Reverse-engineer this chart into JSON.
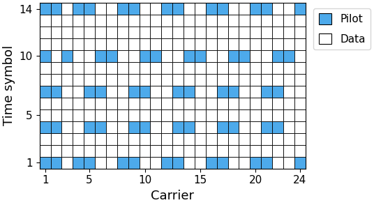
{
  "n_carriers": 24,
  "n_symbols": 14,
  "pilot_color": "#4DAAEB",
  "data_color": "#FFFFFF",
  "grid_color": "#AAAAAA",
  "edge_color": "#000000",
  "xlabel": "Carrier",
  "ylabel": "Time symbol",
  "legend_pilot": "Pilot",
  "legend_data": "Data",
  "xticks": [
    1,
    5,
    10,
    15,
    20,
    24
  ],
  "yticks": [
    1,
    5,
    10,
    14
  ],
  "pilot_positions": {
    "1": [
      1,
      2,
      4,
      5,
      8,
      9,
      12,
      13,
      16,
      17,
      20,
      21,
      24
    ],
    "4": [
      1,
      2,
      5,
      6,
      9,
      10,
      13,
      14,
      17,
      18,
      21,
      22
    ],
    "7": [
      1,
      2,
      5,
      6,
      9,
      10,
      13,
      14,
      17,
      18,
      21,
      22
    ],
    "10": [
      1,
      3,
      6,
      7,
      10,
      11,
      14,
      15,
      18,
      19,
      22,
      23
    ],
    "14": [
      1,
      2,
      4,
      5,
      8,
      9,
      12,
      13,
      16,
      17,
      20,
      21,
      24
    ]
  },
  "figsize": [
    5.36,
    2.94
  ],
  "dpi": 100
}
